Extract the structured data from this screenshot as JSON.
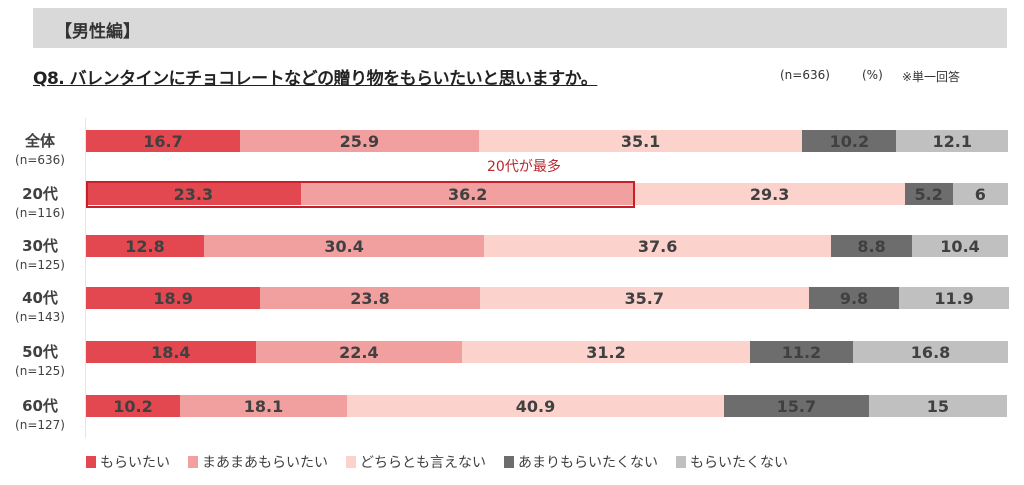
{
  "header": {
    "section": "【男性編】"
  },
  "question": {
    "title": "Q8. バレンタインにチョコレートなどの贈り物をもらいたいと思いますか。",
    "n": "(n=636)",
    "unit": "(%)",
    "answer_type": "※単一回答"
  },
  "chart_data": {
    "type": "bar",
    "orientation": "horizontal",
    "stacked": true,
    "xlim": [
      0,
      100
    ],
    "categories": [
      "全体",
      "20代",
      "30代",
      "40代",
      "50代",
      "60代"
    ],
    "category_n": [
      "(n=636)",
      "(n=116)",
      "(n=125)",
      "(n=143)",
      "(n=125)",
      "(n=127)"
    ],
    "series": [
      {
        "name": "もらいたい",
        "color": "#e3474f",
        "values": [
          16.7,
          23.3,
          12.8,
          18.9,
          18.4,
          10.2
        ]
      },
      {
        "name": "まあまあもらいたい",
        "color": "#f2a09f",
        "values": [
          25.9,
          36.2,
          30.4,
          23.8,
          22.4,
          18.1
        ]
      },
      {
        "name": "どちらとも言えない",
        "color": "#fcd3cc",
        "values": [
          35.1,
          29.3,
          37.6,
          35.7,
          31.2,
          40.9
        ]
      },
      {
        "name": "あまりもらいたくない",
        "color": "#6d6d6d",
        "values": [
          10.2,
          5.2,
          8.8,
          9.8,
          11.2,
          15.7
        ]
      },
      {
        "name": "もらいたくない",
        "color": "#c0c0c0",
        "values": [
          12.1,
          6.0,
          10.4,
          11.9,
          16.8,
          15.0
        ]
      }
    ],
    "legend": "bottom",
    "annotation": {
      "text": "20代が最多",
      "category": "20代",
      "series": [
        "もらいたい",
        "まあまあもらいたい"
      ],
      "color": "#c8202b"
    }
  }
}
